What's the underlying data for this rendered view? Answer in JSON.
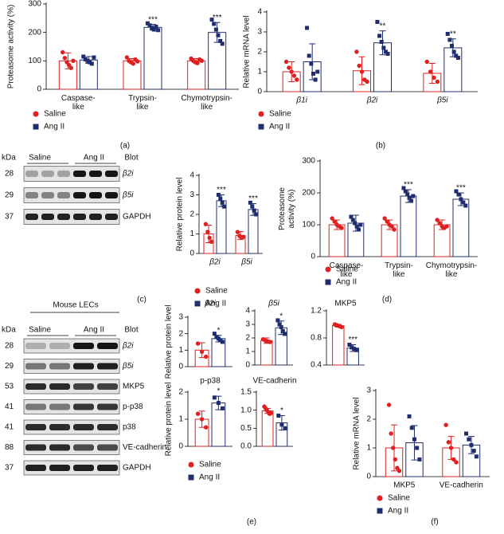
{
  "chart_data": [
    {
      "type": "bar",
      "ylabel": "Proteasome activity (%)",
      "panel": "(a)",
      "categories": [
        "Caspase-\nlike",
        "Trypsin-\nlike",
        "Chymotrypsin-\nlike"
      ],
      "ylim": [
        0,
        300
      ],
      "yticks": [
        0,
        100,
        200,
        300
      ],
      "series": [
        {
          "name": "Saline",
          "color": "#e02020",
          "values": [
            100,
            100,
            100
          ],
          "errors": [
            28,
            8,
            8
          ],
          "points": [
            [
              130,
              110,
              95,
              85,
              75,
              100
            ],
            [
              112,
              100,
              95,
              90,
              105,
              98
            ],
            [
              108,
              100,
              95,
              92,
              105,
              100
            ]
          ],
          "annotations": [
            null,
            null,
            null
          ]
        },
        {
          "name": "Ang II",
          "color": "#1f2d6e",
          "values": [
            103,
            218,
            200
          ],
          "errors": [
            12,
            10,
            35
          ],
          "points": [
            [
              115,
              105,
              100,
              95,
              90,
              112
            ],
            [
              232,
              225,
              215,
              210,
              220,
              208
            ],
            [
              245,
              230,
              210,
              190,
              170,
              160
            ]
          ],
          "annotations": [
            null,
            "***",
            "***"
          ]
        }
      ]
    },
    {
      "type": "bar",
      "ylabel": "Relative mRNA level",
      "panel": "(b)",
      "categories": [
        "β1i",
        "β2i",
        "β5i"
      ],
      "ylim": [
        0,
        4
      ],
      "yticks": [
        0,
        1,
        2,
        3,
        4
      ],
      "series": [
        {
          "name": "Saline",
          "color": "#e02020",
          "values": [
            1.0,
            1.05,
            0.92
          ],
          "errors": [
            0.5,
            0.7,
            0.5
          ],
          "points": [
            [
              1.5,
              1.2,
              1.0,
              0.8,
              0.6
            ],
            [
              2.0,
              1.3,
              1.0,
              0.6,
              0.5
            ],
            [
              1.5,
              1.0,
              0.7,
              0.5
            ]
          ],
          "annotations": [
            null,
            null,
            null
          ]
        },
        {
          "name": "Ang II",
          "color": "#1f2d6e",
          "values": [
            1.5,
            2.45,
            2.2
          ],
          "errors": [
            0.9,
            0.6,
            0.45
          ],
          "points": [
            [
              3.2,
              1.8,
              1.4,
              0.9,
              0.6,
              1.0
            ],
            [
              3.5,
              2.8,
              2.5,
              2.2,
              2.0,
              1.9
            ],
            [
              2.9,
              2.6,
              2.3,
              2.0,
              1.8,
              1.7
            ]
          ],
          "annotations": [
            null,
            "**",
            "**"
          ]
        }
      ]
    },
    {
      "type": "bar",
      "ylabel": "Relative protein level",
      "panel": "(c)",
      "categories": [
        "β2i",
        "β5i"
      ],
      "ylim": [
        0,
        4
      ],
      "yticks": [
        0,
        1,
        2,
        3,
        4
      ],
      "series": [
        {
          "name": "Saline",
          "color": "#e02020",
          "values": [
            1.0,
            0.92
          ],
          "errors": [
            0.45,
            0.2
          ],
          "points": [
            [
              1.5,
              1.1,
              0.8,
              0.6
            ],
            [
              1.1,
              0.9,
              0.8,
              0.85
            ]
          ],
          "annotations": [
            null,
            null
          ]
        },
        {
          "name": "Ang II",
          "color": "#1f2d6e",
          "values": [
            2.7,
            2.25
          ],
          "errors": [
            0.3,
            0.3
          ],
          "points": [
            [
              3.0,
              2.8,
              2.6,
              2.4
            ],
            [
              2.6,
              2.4,
              2.2,
              2.0
            ]
          ],
          "annotations": [
            "***",
            "***"
          ]
        }
      ]
    },
    {
      "type": "bar",
      "ylabel": "Proteasome\nactivity (%)",
      "panel": "(d)",
      "categories": [
        "Caspase-\nlike",
        "Trypsin-\nlike",
        "Chymotrypsin-\nlike"
      ],
      "ylim": [
        0,
        300
      ],
      "yticks": [
        0,
        100,
        200,
        300
      ],
      "series": [
        {
          "name": "Saline",
          "color": "#e02020",
          "values": [
            100,
            100,
            100
          ],
          "errors": [
            15,
            15,
            15
          ],
          "points": [
            [
              120,
              110,
              100,
              95,
              90
            ],
            [
              120,
              110,
              100,
              95,
              85
            ],
            [
              115,
              105,
              95,
              90,
              95
            ]
          ],
          "annotations": [
            null,
            null,
            null
          ]
        },
        {
          "name": "Ang II",
          "color": "#1f2d6e",
          "values": [
            105,
            190,
            180
          ],
          "errors": [
            25,
            20,
            20
          ],
          "points": [
            [
              125,
              115,
              105,
              95,
              85,
              100
            ],
            [
              215,
              205,
              195,
              185,
              175,
              190
            ],
            [
              205,
              195,
              180,
              170,
              160
            ]
          ],
          "annotations": [
            null,
            "***",
            "***"
          ]
        }
      ]
    },
    {
      "type": "bar",
      "title": "β2i",
      "ylabel": "Relative protein level",
      "categories": [
        null
      ],
      "ylim": [
        0,
        3
      ],
      "yticks": [
        0,
        1,
        2,
        3
      ],
      "series": [
        {
          "color": "#e02020",
          "values": [
            1.0
          ],
          "errors": [
            0.45
          ],
          "points": [
            [
              1.4,
              0.9,
              0.6
            ]
          ],
          "annotations": [
            null
          ]
        },
        {
          "color": "#1f2d6e",
          "values": [
            1.7
          ],
          "errors": [
            0.2
          ],
          "points": [
            [
              2.0,
              1.8,
              1.7,
              1.6,
              1.5
            ]
          ],
          "annotations": [
            "*"
          ]
        }
      ]
    },
    {
      "type": "bar",
      "title": "β5i",
      "categories": [
        null
      ],
      "ylim": [
        0,
        4
      ],
      "yticks": [
        0,
        1,
        2,
        3,
        4
      ],
      "series": [
        {
          "color": "#e02020",
          "values": [
            1.8
          ],
          "errors": [
            0.2
          ],
          "points": [
            [
              1.9,
              1.8,
              1.75,
              1.7
            ]
          ],
          "annotations": [
            null
          ]
        },
        {
          "color": "#1f2d6e",
          "values": [
            2.75
          ],
          "errors": [
            0.5
          ],
          "points": [
            [
              3.3,
              3.0,
              2.8,
              2.5,
              2.3
            ]
          ],
          "annotations": [
            "*"
          ]
        }
      ]
    },
    {
      "type": "bar",
      "title": "MKP5",
      "categories": [
        null
      ],
      "ylim": [
        0.4,
        1.2
      ],
      "yticks": [
        0.4,
        0.8,
        1.2
      ],
      "series": [
        {
          "color": "#e02020",
          "values": [
            0.98
          ],
          "errors": [
            0.02
          ],
          "points": [
            [
              1.0,
              0.99,
              0.98,
              0.97,
              0.96
            ]
          ],
          "annotations": [
            null
          ]
        },
        {
          "color": "#1f2d6e",
          "values": [
            0.65
          ],
          "errors": [
            0.05
          ],
          "points": [
            [
              0.7,
              0.66,
              0.64,
              0.62
            ]
          ],
          "annotations": [
            "***"
          ]
        }
      ]
    },
    {
      "type": "bar",
      "title": "p-p38",
      "ylabel": "Relative protein level",
      "panel": "(e)",
      "categories": [
        null
      ],
      "ylim": [
        0,
        2
      ],
      "yticks": [
        0,
        1,
        2
      ],
      "series": [
        {
          "name": "Saline",
          "color": "#e02020",
          "values": [
            1.0
          ],
          "errors": [
            0.3
          ],
          "points": [
            [
              1.2,
              1.0,
              0.7
            ]
          ],
          "annotations": [
            null
          ]
        },
        {
          "name": "Ang II",
          "color": "#1f2d6e",
          "values": [
            1.6
          ],
          "errors": [
            0.25
          ],
          "points": [
            [
              1.8,
              1.6,
              1.4
            ]
          ],
          "annotations": [
            "*"
          ]
        }
      ]
    },
    {
      "type": "bar",
      "title": "VE-cadherin",
      "categories": [
        null
      ],
      "ylim": [
        0,
        1.5
      ],
      "yticks": [
        {
          "value": 0,
          "label": "0.0"
        },
        0.5,
        {
          "value": 1,
          "label": "1.0"
        },
        1.5
      ],
      "series": [
        {
          "color": "#e02020",
          "values": [
            0.98
          ],
          "errors": [
            0.07
          ],
          "points": [
            [
              1.1,
              1.05,
              1.0,
              0.95,
              0.9,
              0.92
            ]
          ],
          "annotations": [
            null
          ]
        },
        {
          "color": "#1f2d6e",
          "values": [
            0.65
          ],
          "errors": [
            0.2
          ],
          "points": [
            [
              0.85,
              0.6,
              0.5
            ]
          ],
          "annotations": [
            "*"
          ]
        }
      ]
    },
    {
      "type": "bar",
      "ylabel": "Relative mRNA level",
      "panel": "(f)",
      "categories": [
        "MKP5",
        "VE-cadherin"
      ],
      "ylim": [
        0,
        3
      ],
      "yticks": [
        0,
        1,
        2,
        3
      ],
      "series": [
        {
          "name": "Saline",
          "color": "#e02020",
          "values": [
            1.0,
            1.0
          ],
          "errors": [
            0.8,
            0.4
          ],
          "points": [
            [
              2.5,
              1.5,
              1.0,
              0.6,
              0.3,
              0.2
            ],
            [
              1.8,
              1.2,
              1.0,
              0.6,
              0.5
            ]
          ],
          "annotations": [
            null,
            null
          ]
        },
        {
          "name": "Ang II",
          "color": "#1f2d6e",
          "values": [
            1.18,
            1.1
          ],
          "errors": [
            0.6,
            0.3
          ],
          "points": [
            [
              2.1,
              1.7,
              1.3,
              1.0,
              0.6
            ],
            [
              1.5,
              1.3,
              1.1,
              0.9,
              0.7
            ]
          ],
          "annotations": [
            null,
            null
          ]
        }
      ]
    }
  ],
  "blots": [
    {
      "kda": "kDa",
      "groups": [
        "Saline",
        "Ang II"
      ],
      "blot": "Blot",
      "rows": [
        {
          "kda": 28,
          "label": "β2i"
        },
        {
          "kda": 29,
          "label": "β5i"
        },
        {
          "kda": 37,
          "label": "GAPDH"
        }
      ]
    },
    {
      "title": "Mouse LECs",
      "kda": "kDa",
      "groups": [
        "Saline",
        "Ang II"
      ],
      "blot": "Blot",
      "rows": [
        {
          "kda": 28,
          "label": "β2i"
        },
        {
          "kda": 29,
          "label": "β5i"
        },
        {
          "kda": 53,
          "label": "MKP5"
        },
        {
          "kda": 41,
          "label": "p-p38"
        },
        {
          "kda": 41,
          "label": "p38"
        },
        {
          "kda": 88,
          "label": "VE-cadherin"
        },
        {
          "kda": 37,
          "label": "GAPDH"
        }
      ]
    }
  ]
}
